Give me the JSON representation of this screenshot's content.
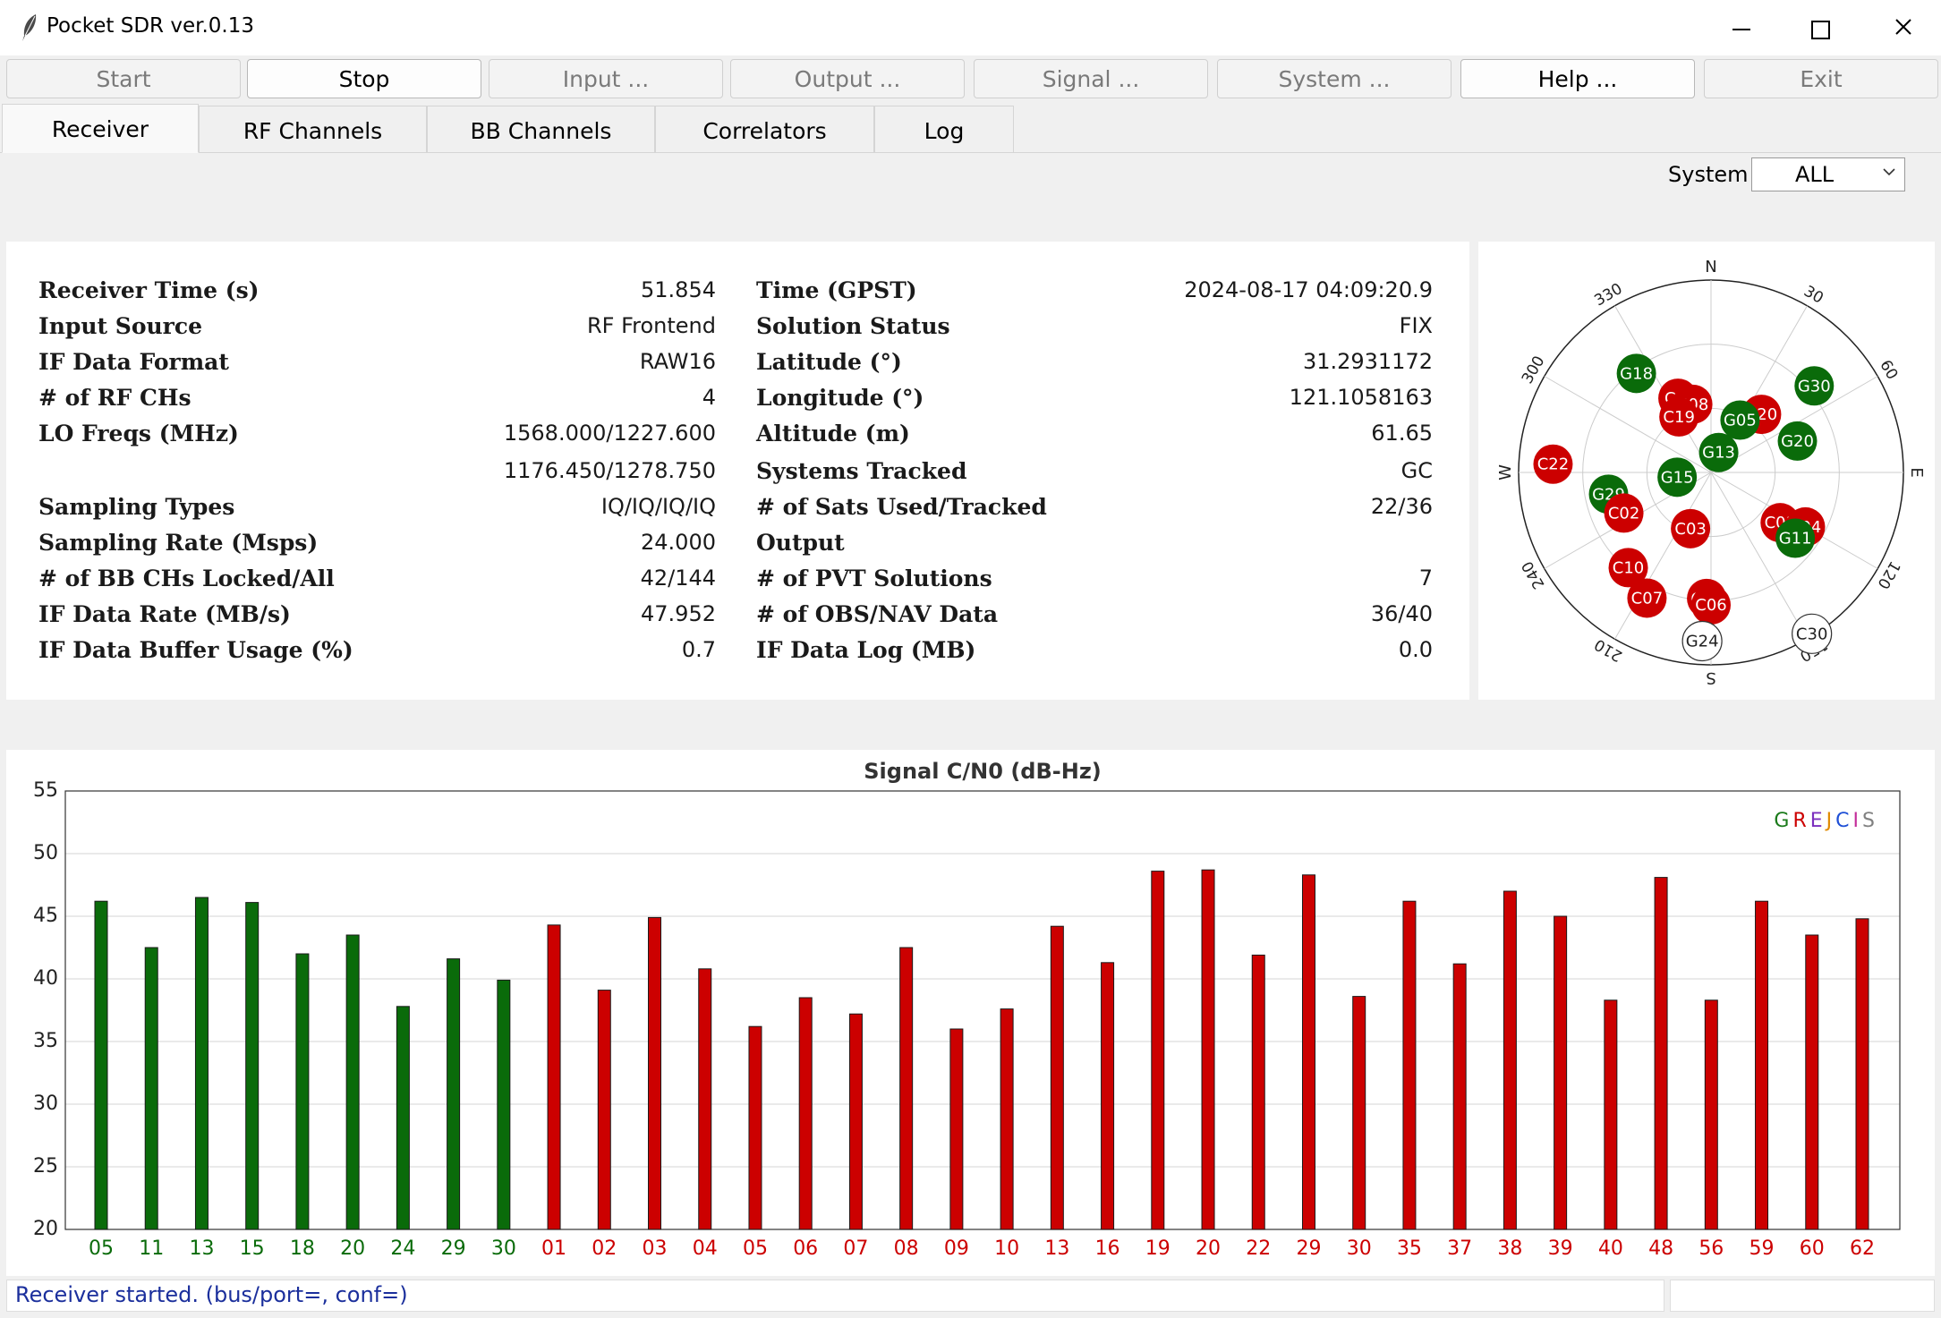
{
  "window": {
    "title": "Pocket SDR ver.0.13"
  },
  "toolbar": [
    {
      "label": "Start",
      "active": false
    },
    {
      "label": "Stop",
      "active": true
    },
    {
      "label": "Input ...",
      "active": false
    },
    {
      "label": "Output ...",
      "active": false
    },
    {
      "label": "Signal ...",
      "active": false
    },
    {
      "label": "System ...",
      "active": false
    },
    {
      "label": "Help ...",
      "active": true
    },
    {
      "label": "Exit",
      "active": false
    }
  ],
  "tabs": [
    {
      "label": "Receiver",
      "active": true
    },
    {
      "label": "RF Channels",
      "active": false
    },
    {
      "label": "BB Channels",
      "active": false
    },
    {
      "label": "Correlators",
      "active": false
    },
    {
      "label": "Log",
      "active": false
    }
  ],
  "system_filter": {
    "label": "System",
    "value": "ALL"
  },
  "info_left": [
    {
      "label": "Receiver Time (s)",
      "value": "51.854"
    },
    {
      "label": "Input Source",
      "value": "RF Frontend"
    },
    {
      "label": "IF Data Format",
      "value": "RAW16"
    },
    {
      "label": "# of RF CHs",
      "value": "4"
    },
    {
      "label": "LO Freqs (MHz)",
      "value": "1568.000/1227.600"
    },
    {
      "label": "",
      "value": "1176.450/1278.750"
    },
    {
      "label": "Sampling Types",
      "value": "IQ/IQ/IQ/IQ"
    },
    {
      "label": "Sampling Rate (Msps)",
      "value": "24.000"
    },
    {
      "label": "# of BB CHs Locked/All",
      "value": "42/144"
    },
    {
      "label": "IF Data Rate (MB/s)",
      "value": "47.952"
    },
    {
      "label": "IF Data Buffer Usage (%)",
      "value": "0.7"
    }
  ],
  "info_right": [
    {
      "label": "Time (GPST)",
      "value": "2024-08-17 04:09:20.9"
    },
    {
      "label": "Solution Status",
      "value": "FIX"
    },
    {
      "label": "Latitude (°)",
      "value": "31.2931172"
    },
    {
      "label": "Longitude (°)",
      "value": "121.1058163"
    },
    {
      "label": "Altitude (m)",
      "value": "61.65"
    },
    {
      "label": "Systems Tracked",
      "value": "GC"
    },
    {
      "label": "# of Sats Used/Tracked",
      "value": "22/36"
    },
    {
      "label": "Output",
      "value": ""
    },
    {
      "label": "# of PVT Solutions",
      "value": "7"
    },
    {
      "label": "# of OBS/NAV Data",
      "value": "36/40"
    },
    {
      "label": "IF Data Log (MB)",
      "value": "0.0"
    }
  ],
  "skyplot": {
    "directions": [
      "N",
      "E",
      "S",
      "W"
    ],
    "azimuth_labels": [
      "30",
      "60",
      "120",
      "150",
      "210",
      "240",
      "300",
      "330"
    ],
    "colors": {
      "gps": "#0a6b0a",
      "beidou": "#cc0000",
      "untracked": "#ffffff"
    },
    "satellites": [
      {
        "id": "G18",
        "az": 323,
        "el": 32,
        "sys": "gps"
      },
      {
        "id": "C1:",
        "az": 336,
        "el": 52,
        "sys": "beidou"
      },
      {
        "id": "C08",
        "az": 345,
        "el": 57,
        "sys": "beidou"
      },
      {
        "id": "C19",
        "az": 330,
        "el": 60,
        "sys": "beidou"
      },
      {
        "id": "C20",
        "az": 41,
        "el": 54,
        "sys": "beidou"
      },
      {
        "id": "G05",
        "az": 29,
        "el": 62,
        "sys": "gps"
      },
      {
        "id": "G30",
        "az": 50,
        "el": 27,
        "sys": "gps"
      },
      {
        "id": "G13",
        "az": 21,
        "el": 80,
        "sys": "gps"
      },
      {
        "id": "G20",
        "az": 70,
        "el": 47,
        "sys": "gps"
      },
      {
        "id": "G15",
        "az": 262,
        "el": 74,
        "sys": "gps"
      },
      {
        "id": "C22",
        "az": 273,
        "el": 16,
        "sys": "beidou"
      },
      {
        "id": "G29",
        "az": 258,
        "el": 41,
        "sys": "gps"
      },
      {
        "id": "C02",
        "az": 245,
        "el": 45,
        "sys": "beidou"
      },
      {
        "id": "C03",
        "az": 200,
        "el": 62,
        "sys": "beidou"
      },
      {
        "id": "C01",
        "az": 126,
        "el": 50,
        "sys": "beidou"
      },
      {
        "id": "C04",
        "az": 120,
        "el": 39,
        "sys": "beidou"
      },
      {
        "id": "G11",
        "az": 128,
        "el": 40,
        "sys": "gps"
      },
      {
        "id": "C10",
        "az": 221,
        "el": 31,
        "sys": "beidou"
      },
      {
        "id": "C07",
        "az": 207,
        "el": 24,
        "sys": "beidou"
      },
      {
        "id": "C06",
        "az": 182,
        "el": 31,
        "sys": "beidou"
      },
      {
        "id": "C06",
        "az": 180,
        "el": 28,
        "sys": "beidou"
      },
      {
        "id": "G24",
        "az": 183,
        "el": 11,
        "sys": "untracked"
      },
      {
        "id": "C30",
        "az": 148,
        "el": 1,
        "sys": "untracked"
      }
    ]
  },
  "chart_data": {
    "type": "bar",
    "title": "Signal C/N0 (dB-Hz)",
    "ylim": [
      20,
      55
    ],
    "yticks": [
      20,
      25,
      30,
      35,
      40,
      45,
      50,
      55
    ],
    "grid": true,
    "legend_text": "GREJCIS",
    "legend_colors": [
      "#1a7a1a",
      "#cc0000",
      "#7b2fbe",
      "#e08a00",
      "#1e4fd6",
      "#c42d9a",
      "#808080"
    ],
    "categories": [
      "05",
      "11",
      "13",
      "15",
      "18",
      "20",
      "24",
      "29",
      "30",
      "01",
      "02",
      "03",
      "04",
      "05",
      "06",
      "07",
      "08",
      "09",
      "10",
      "13",
      "16",
      "19",
      "20",
      "22",
      "29",
      "30",
      "35",
      "37",
      "38",
      "39",
      "40",
      "48",
      "56",
      "59",
      "60",
      "62"
    ],
    "series": [
      {
        "system": "G",
        "color": "#0a6b0a",
        "values": [
          46.2,
          42.5,
          46.5,
          46.1,
          42.0,
          43.5,
          37.8,
          41.6,
          39.9,
          null,
          null,
          null,
          null,
          null,
          null,
          null,
          null,
          null,
          null,
          null,
          null,
          null,
          null,
          null,
          null,
          null,
          null,
          null,
          null,
          null,
          null,
          null,
          null,
          null,
          null,
          null
        ]
      },
      {
        "system": "C",
        "color": "#cc0000",
        "values": [
          null,
          null,
          null,
          null,
          null,
          null,
          null,
          null,
          null,
          44.3,
          39.1,
          44.9,
          40.8,
          36.2,
          38.5,
          37.2,
          42.5,
          36.0,
          37.6,
          44.2,
          41.3,
          48.6,
          48.7,
          41.9,
          48.3,
          38.6,
          46.2,
          41.2,
          47.0,
          45.0,
          38.3,
          48.1,
          38.3,
          46.2,
          43.5,
          44.8
        ]
      }
    ]
  },
  "status": {
    "message": "Receiver started. (bus/port=, conf=)",
    "right": ""
  }
}
